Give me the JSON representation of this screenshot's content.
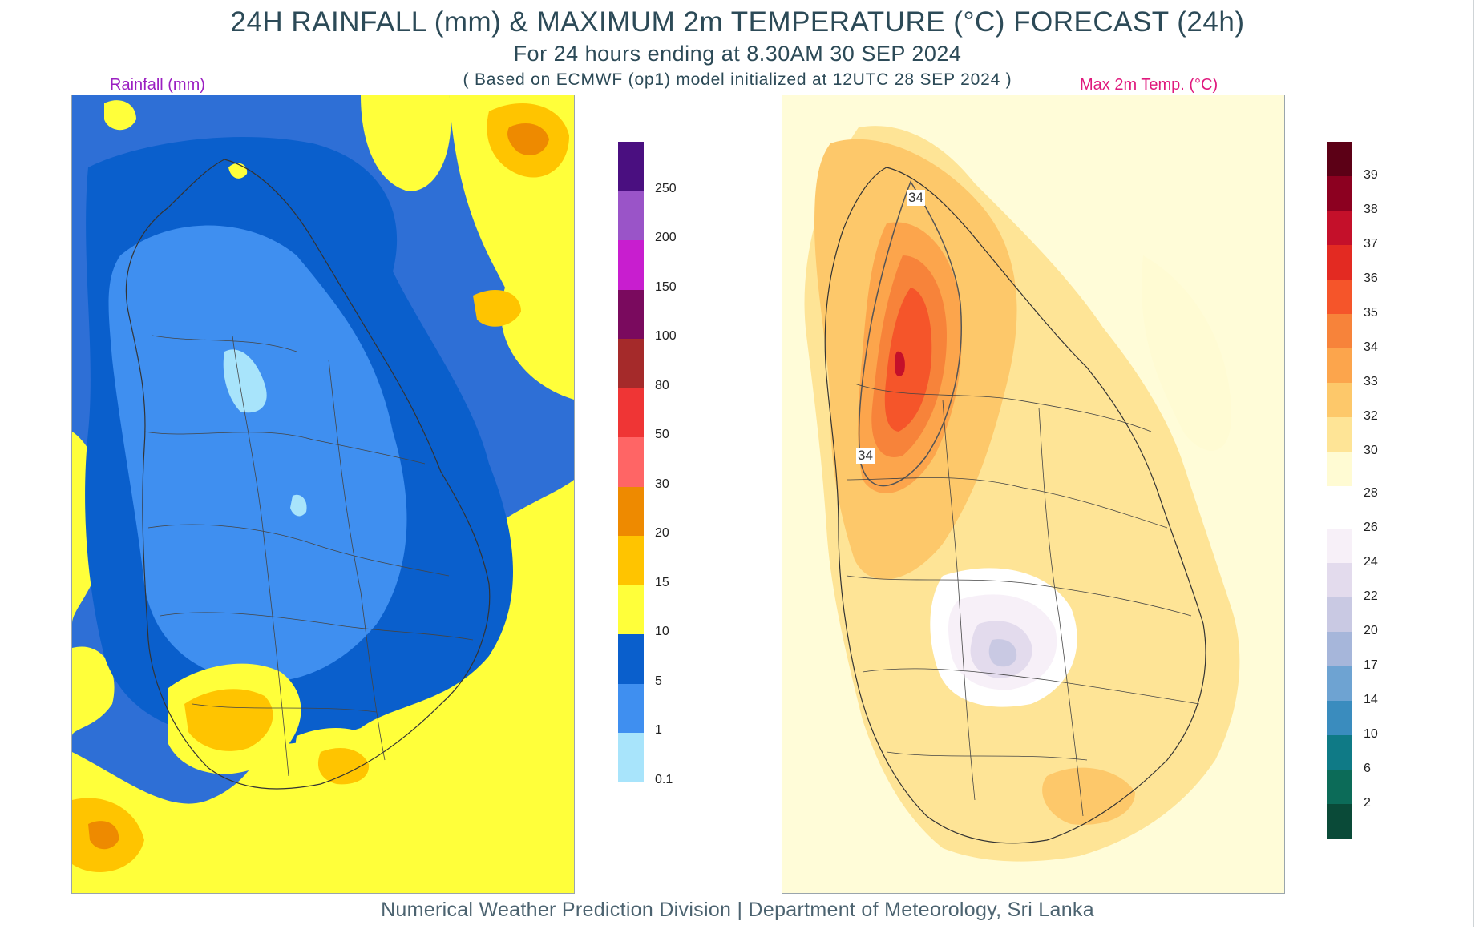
{
  "header": {
    "title": "24H RAINFALL (mm) & MAXIMUM 2m TEMPERATURE (°C) FORECAST (24h)",
    "subtitle": "For 24 hours ending at 8.30AM 30 SEP 2024",
    "basis": "( Based on ECMWF (op1) model initialized at 12UTC 28 SEP 2024 )"
  },
  "rain_panel": {
    "label": "Rainfall (mm)",
    "legend": {
      "ticks": [
        "250",
        "200",
        "150",
        "100",
        "80",
        "50",
        "30",
        "20",
        "15",
        "10",
        "5",
        "1",
        "0.1"
      ],
      "colors": [
        "#4a0f80",
        "#9a54c8",
        "#c81ecf",
        "#7a0a5e",
        "#a52a2a",
        "#ef3535",
        "#ff6565",
        "#ee8a00",
        "#ffc400",
        "#ffff3a",
        "#0a5fcc",
        "#3f8ff0",
        "#a8e4fb"
      ]
    }
  },
  "temp_panel": {
    "label": "Max 2m Temp. (°C)",
    "contour_labels": [
      "34",
      "34"
    ],
    "legend": {
      "ticks": [
        "39",
        "38",
        "37",
        "36",
        "35",
        "34",
        "33",
        "32",
        "30",
        "28",
        "26",
        "24",
        "22",
        "20",
        "17",
        "14",
        "10",
        "6",
        "2"
      ],
      "colors": [
        "#5c0016",
        "#8c0020",
        "#c4102a",
        "#e32a22",
        "#f5552a",
        "#f7833a",
        "#fca54c",
        "#fdc86a",
        "#fee496",
        "#fffbd3",
        "#ffffff",
        "#f7f0f8",
        "#e3dbed",
        "#c9c9e3",
        "#a6b6da",
        "#6ea3d2",
        "#3a8cbe",
        "#0f7a86",
        "#0c6b58",
        "#0a4a38"
      ]
    }
  },
  "footer": {
    "text": "Numerical Weather Prediction Division | Department of Meteorology, Sri Lanka"
  }
}
